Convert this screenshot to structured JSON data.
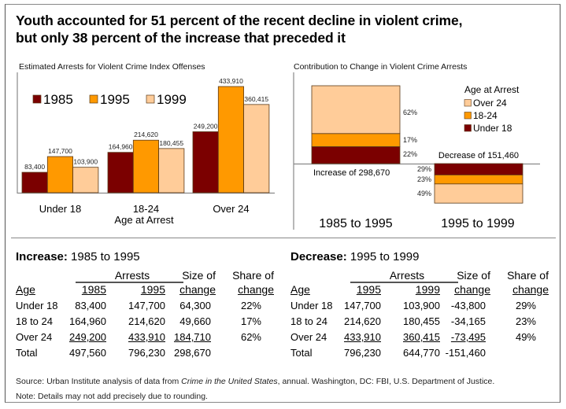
{
  "title": {
    "line1": "Youth accounted for 51 percent of the recent decline in violent crime,",
    "line2": "but only 38 percent of the increase that preceded it"
  },
  "colors": {
    "c1985": "#7B0000",
    "c1995": "#FF9900",
    "c1999": "#FFCC99",
    "under18": "#7B0000",
    "age18_24": "#FF9900",
    "over24": "#FFCC99",
    "bar_stroke": "#5a3a1a",
    "axis": "#888888"
  },
  "chart_data": [
    {
      "type": "bar",
      "title": "Estimated Arrests for Violent Crime Index Offenses",
      "xlabel": "Age at Arrest",
      "ylabel": "",
      "categories": [
        "Under 18",
        "18-24",
        "Over 24"
      ],
      "series": [
        {
          "name": "1985",
          "values": [
            83400,
            164960,
            249200
          ],
          "labels": [
            "83,400",
            "164,960",
            "249,200"
          ]
        },
        {
          "name": "1995",
          "values": [
            147700,
            214620,
            433910
          ],
          "labels": [
            "147,700",
            "214,620",
            "433,910"
          ]
        },
        {
          "name": "1999",
          "values": [
            103900,
            180455,
            360415
          ],
          "labels": [
            "103,900",
            "180,455",
            "360,415"
          ]
        }
      ],
      "ylim": [
        0,
        450000
      ],
      "legend": "top-left"
    },
    {
      "type": "bar",
      "stacked": true,
      "title": "Contribution to Change in Violent Crime Arrests",
      "legend_title": "Age at Arrest",
      "legend": "top-right",
      "legend_entries": [
        "Over 24",
        "18-24",
        "Under 18"
      ],
      "categories": [
        "1985 to 1995",
        "1995 to 1999"
      ],
      "bars": [
        {
          "label": "Increase of 298,670",
          "total": 298670,
          "direction": "up",
          "segments": [
            {
              "name": "Under 18",
              "share": 22,
              "label": "22%"
            },
            {
              "name": "18-24",
              "share": 17,
              "label": "17%"
            },
            {
              "name": "Over 24",
              "share": 62,
              "label": "62%"
            }
          ]
        },
        {
          "label": "Decrease of 151,460",
          "total": -151460,
          "direction": "down",
          "segments": [
            {
              "name": "Under 18",
              "share": 29,
              "label": "29%"
            },
            {
              "name": "18-24",
              "share": 23,
              "label": "23%"
            },
            {
              "name": "Over 24",
              "share": 49,
              "label": "49%"
            }
          ]
        }
      ]
    }
  ],
  "tables": [
    {
      "heading_bold": "Increase:",
      "heading_rest": " 1985 to 1995",
      "group_header": "Arrests",
      "columns": [
        "Age",
        "1985",
        "1995",
        "Size of",
        "change",
        "Share of",
        "change"
      ],
      "rows": [
        [
          "Under 18",
          "83,400",
          "147,700",
          "64,300",
          "22%"
        ],
        [
          "18 to 24",
          "164,960",
          "214,620",
          "49,660",
          "17%"
        ],
        [
          "Over 24",
          "249,200",
          "433,910",
          "184,710",
          "62%"
        ],
        [
          "Total",
          "497,560",
          "796,230",
          "298,670",
          ""
        ]
      ]
    },
    {
      "heading_bold": "Decrease:",
      "heading_rest": " 1995 to 1999",
      "group_header": "Arrests",
      "columns": [
        "Age",
        "1995",
        "1999",
        "Size of",
        "change",
        "Share of",
        "change"
      ],
      "rows": [
        [
          "Under 18",
          "147,700",
          "103,900",
          "-43,800",
          "29%"
        ],
        [
          "18 to 24",
          "214,620",
          "180,455",
          "-34,165",
          "23%"
        ],
        [
          "Over 24",
          "433,910",
          "360,415",
          "-73,495",
          "49%"
        ],
        [
          "Total",
          "796,230",
          "644,770",
          "-151,460",
          ""
        ]
      ]
    }
  ],
  "footer": {
    "source_prefix": "Source: Urban Institute analysis of data from ",
    "source_italic": "Crime in the United States",
    "source_suffix": ", annual.  Washington, DC: FBI, U.S. Department of Justice.",
    "note": "Note: Details may not add precisely due to rounding."
  }
}
